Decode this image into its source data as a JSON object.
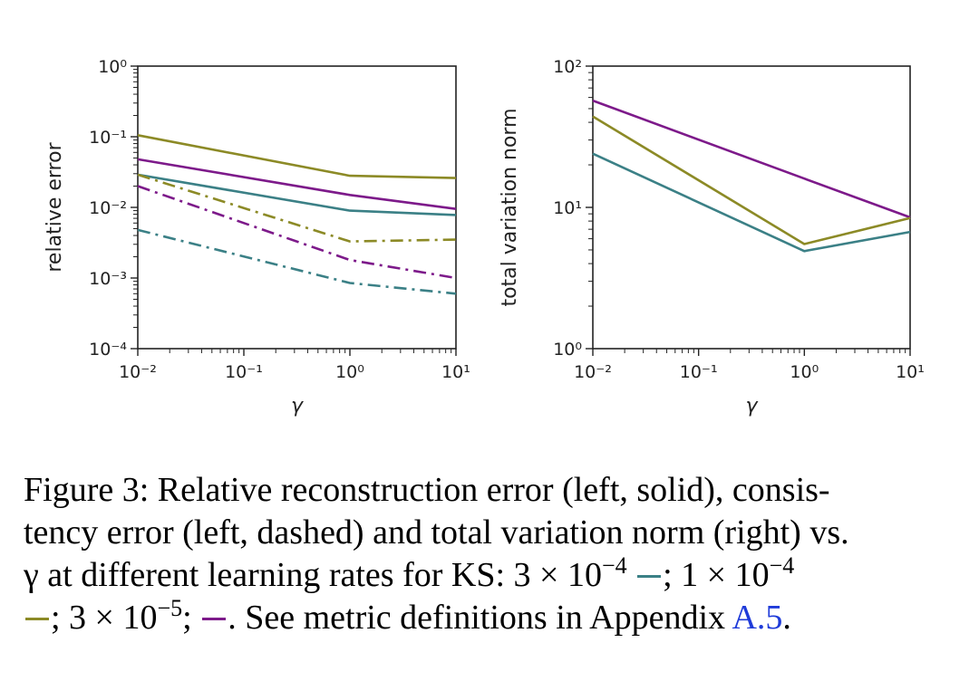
{
  "colors": {
    "lr_3e-4": "#3b8086",
    "lr_1e-4": "#8c8a26",
    "lr_3e-5": "#7d1a8a"
  },
  "chart_data": [
    {
      "type": "line",
      "xscale": "log",
      "yscale": "log",
      "xlim": [
        0.01,
        10
      ],
      "ylim": [
        0.0001,
        1
      ],
      "xticks": [
        "10⁻²",
        "10⁻¹",
        "10⁰",
        "10¹"
      ],
      "yticks": [
        "10⁻⁴",
        "10⁻³",
        "10⁻²",
        "10⁻¹",
        "10⁰"
      ],
      "xlabel": "γ",
      "ylabel": "relative error",
      "x": [
        0.01,
        1,
        10
      ],
      "series": [
        {
          "lr": "1e-4",
          "style": "solid",
          "values": [
            0.105,
            0.028,
            0.026
          ]
        },
        {
          "lr": "3e-5",
          "style": "solid",
          "values": [
            0.048,
            0.015,
            0.0095
          ]
        },
        {
          "lr": "3e-4",
          "style": "solid",
          "values": [
            0.029,
            0.009,
            0.0078
          ]
        },
        {
          "lr": "1e-4",
          "style": "dashdot",
          "values": [
            0.029,
            0.0033,
            0.0035
          ]
        },
        {
          "lr": "3e-5",
          "style": "dashdot",
          "values": [
            0.02,
            0.0018,
            0.001
          ]
        },
        {
          "lr": "3e-4",
          "style": "dashdot",
          "values": [
            0.0048,
            0.00085,
            0.0006
          ]
        }
      ]
    },
    {
      "type": "line",
      "xscale": "log",
      "yscale": "log",
      "xlim": [
        0.01,
        10
      ],
      "ylim": [
        1,
        100
      ],
      "xticks": [
        "10⁻²",
        "10⁻¹",
        "10⁰",
        "10¹"
      ],
      "yticks": [
        "10⁰",
        "10¹",
        "10²"
      ],
      "xlabel": "γ",
      "ylabel": "total variation norm",
      "x": [
        0.01,
        1,
        10
      ],
      "series": [
        {
          "lr": "3e-5",
          "style": "solid",
          "values": [
            57,
            16,
            8.5
          ]
        },
        {
          "lr": "1e-4",
          "style": "solid",
          "values": [
            44,
            5.5,
            8.4
          ]
        },
        {
          "lr": "3e-4",
          "style": "solid",
          "values": [
            24,
            4.9,
            6.7
          ]
        }
      ]
    }
  ],
  "caption": {
    "line1": "Figure 3: Relative reconstruction error (left, solid), consis-",
    "line2": "tency error (left, dashed) and total variation norm (right) vs.",
    "line3_a": "γ at different learning rates for KS: 3 × 10",
    "line3_exp": "−4",
    "line3_b": "; 1 × 10",
    "line3_exp2": "−4",
    "line4_a": "; 3 × 10",
    "line4_exp": "−5",
    "line4_b": ";",
    "line4_c": ". See metric definitions in Appendix ",
    "link": "A.5",
    "line4_end": "."
  }
}
